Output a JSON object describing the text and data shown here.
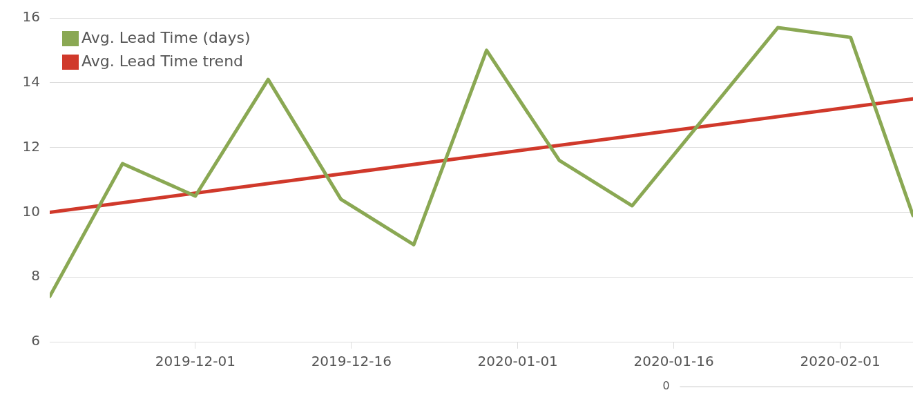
{
  "chart_data": {
    "type": "line",
    "series": [
      {
        "name": "Avg. Lead Time (days)",
        "color": "#8aa853",
        "x": [
          "2019-11-17",
          "2019-11-24",
          "2019-12-01",
          "2019-12-08",
          "2019-12-15",
          "2019-12-22",
          "2019-12-29",
          "2020-01-05",
          "2020-01-12",
          "2020-01-26",
          "2020-02-02",
          "2020-02-08"
        ],
        "values": [
          7.4,
          11.5,
          10.5,
          14.1,
          10.4,
          9.0,
          15.0,
          11.6,
          10.2,
          15.7,
          15.4,
          9.9
        ]
      },
      {
        "name": "Avg. Lead Time trend",
        "color": "#d0392b",
        "x": [
          "2019-11-17",
          "2020-02-08"
        ],
        "values": [
          10.0,
          13.5
        ]
      }
    ],
    "xlim": [
      "2019-11-17",
      "2020-02-08"
    ],
    "xticks": [
      "2019-12-01",
      "2019-12-16",
      "2020-01-01",
      "2020-01-16",
      "2020-02-01"
    ],
    "ylim": [
      6,
      16
    ],
    "yticks": [
      6,
      8,
      10,
      12,
      14,
      16
    ],
    "grid": "y",
    "legend": "top left",
    "marker": "none",
    "line_style": "solid",
    "annotations": [
      "0"
    ]
  }
}
